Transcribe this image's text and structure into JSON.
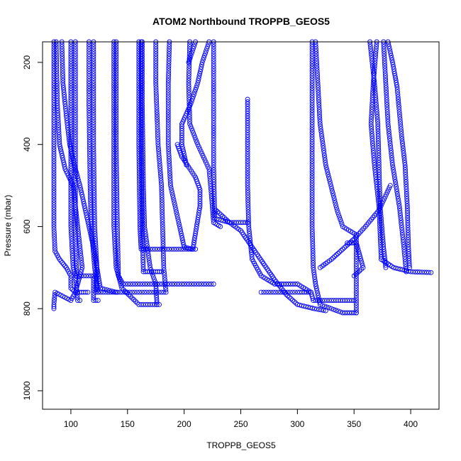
{
  "chart_data": {
    "type": "scatter",
    "title": "ATOM2 Northbound TROPPB_GEOS5",
    "xlabel": "TROPPB_GEOS5",
    "ylabel": "Pressure (mbar)",
    "xlim": [
      75,
      425
    ],
    "ylim": [
      1045,
      150
    ],
    "y_inverted": true,
    "x_ticks": [
      100,
      150,
      200,
      250,
      300,
      350,
      400
    ],
    "y_ticks": [
      200,
      400,
      600,
      800,
      1000
    ],
    "grid": false,
    "marker": "open-circle",
    "series_color": "#0000ff",
    "series": [
      {
        "values": [
          [
            85,
            150
          ],
          [
            85,
            400
          ],
          [
            85,
            600
          ],
          [
            86,
            660
          ],
          [
            90,
            680
          ],
          [
            96,
            700
          ],
          [
            100,
            720
          ],
          [
            100,
            750
          ],
          [
            104,
            760
          ],
          [
            100,
            780
          ],
          [
            86,
            760
          ],
          [
            85,
            790
          ],
          [
            85,
            800
          ]
        ]
      },
      {
        "values": [
          [
            87,
            150
          ],
          [
            88,
            300
          ],
          [
            90,
            400
          ],
          [
            95,
            460
          ],
          [
            102,
            500
          ],
          [
            106,
            600
          ],
          [
            110,
            700
          ],
          [
            104,
            760
          ],
          [
            115,
            760
          ]
        ]
      },
      {
        "values": [
          [
            92,
            150
          ],
          [
            93,
            250
          ],
          [
            96,
            330
          ],
          [
            99,
            400
          ],
          [
            103,
            450
          ],
          [
            108,
            500
          ],
          [
            112,
            550
          ],
          [
            116,
            600
          ],
          [
            120,
            650
          ],
          [
            123,
            700
          ],
          [
            122,
            760
          ],
          [
            182,
            760
          ]
        ]
      },
      {
        "values": [
          [
            100,
            150
          ],
          [
            100,
            400
          ],
          [
            100,
            600
          ],
          [
            102,
            700
          ],
          [
            104,
            720
          ],
          [
            106,
            780
          ],
          [
            108,
            780
          ]
        ]
      },
      {
        "values": [
          [
            104,
            150
          ],
          [
            104,
            400
          ],
          [
            104,
            600
          ],
          [
            105,
            720
          ],
          [
            120,
            720
          ],
          [
            120,
            780
          ],
          [
            124,
            780
          ]
        ]
      },
      {
        "values": [
          [
            116,
            150
          ],
          [
            116,
            300
          ],
          [
            117,
            500
          ],
          [
            118,
            600
          ],
          [
            121,
            700
          ],
          [
            124,
            760
          ]
        ]
      },
      {
        "values": [
          [
            120,
            150
          ],
          [
            120,
            400
          ],
          [
            121,
            600
          ],
          [
            123,
            700
          ],
          [
            126,
            750
          ],
          [
            140,
            760
          ]
        ]
      },
      {
        "values": [
          [
            138,
            150
          ],
          [
            138,
            400
          ],
          [
            138,
            600
          ],
          [
            140,
            700
          ],
          [
            145,
            750
          ],
          [
            160,
            790
          ],
          [
            178,
            790
          ]
        ]
      },
      {
        "values": [
          [
            140,
            150
          ],
          [
            140,
            400
          ],
          [
            141,
            600
          ],
          [
            142,
            720
          ],
          [
            146,
            740
          ],
          [
            226,
            740
          ]
        ]
      },
      {
        "values": [
          [
            160,
            150
          ],
          [
            160,
            400
          ],
          [
            161,
            600
          ],
          [
            162,
            655
          ],
          [
            168,
            655
          ],
          [
            210,
            655
          ]
        ]
      },
      {
        "values": [
          [
            163,
            150
          ],
          [
            163,
            300
          ],
          [
            164,
            500
          ],
          [
            165,
            600
          ],
          [
            170,
            700
          ],
          [
            175,
            740
          ],
          [
            176,
            790
          ]
        ]
      },
      {
        "values": [
          [
            162,
            150
          ],
          [
            162,
            400
          ],
          [
            163,
            600
          ],
          [
            164,
            710
          ],
          [
            171,
            710
          ],
          [
            180,
            710
          ]
        ]
      },
      {
        "values": [
          [
            175,
            150
          ],
          [
            175,
            250
          ],
          [
            177,
            400
          ],
          [
            180,
            500
          ],
          [
            181,
            600
          ],
          [
            182,
            700
          ],
          [
            184,
            760
          ]
        ]
      },
      {
        "values": [
          [
            187,
            150
          ],
          [
            186,
            250
          ],
          [
            186,
            400
          ],
          [
            188,
            500
          ],
          [
            196,
            600
          ],
          [
            200,
            650
          ],
          [
            207,
            655
          ]
        ]
      },
      {
        "values": [
          [
            194,
            400
          ],
          [
            198,
            430
          ],
          [
            204,
            455
          ],
          [
            210,
            480
          ],
          [
            214,
            510
          ],
          [
            214,
            550
          ],
          [
            211,
            600
          ],
          [
            208,
            650
          ]
        ]
      },
      {
        "values": [
          [
            205,
            150
          ],
          [
            204,
            250
          ],
          [
            205,
            350
          ],
          [
            212,
            400
          ],
          [
            222,
            460
          ],
          [
            224,
            520
          ],
          [
            226,
            590
          ],
          [
            232,
            600
          ]
        ]
      },
      {
        "values": [
          [
            222,
            150
          ],
          [
            216,
            200
          ],
          [
            212,
            250
          ],
          [
            206,
            300
          ],
          [
            198,
            350
          ],
          [
            198,
            400
          ],
          [
            202,
            450
          ]
        ]
      },
      {
        "values": [
          [
            226,
            150
          ],
          [
            226,
            300
          ],
          [
            226,
            450
          ],
          [
            227,
            580
          ],
          [
            240,
            590
          ],
          [
            256,
            590
          ]
        ]
      },
      {
        "values": [
          [
            228,
            560
          ],
          [
            240,
            590
          ],
          [
            250,
            610
          ],
          [
            260,
            650
          ],
          [
            270,
            690
          ],
          [
            280,
            730
          ],
          [
            290,
            765
          ],
          [
            300,
            790
          ],
          [
            315,
            800
          ],
          [
            325,
            805
          ]
        ]
      },
      {
        "values": [
          [
            256,
            290
          ],
          [
            256,
            400
          ],
          [
            256,
            500
          ],
          [
            257,
            600
          ],
          [
            260,
            680
          ],
          [
            268,
            720
          ],
          [
            280,
            740
          ],
          [
            300,
            740
          ],
          [
            312,
            760
          ],
          [
            314,
            780
          ],
          [
            330,
            780
          ],
          [
            350,
            780
          ]
        ]
      },
      {
        "values": [
          [
            268,
            760
          ],
          [
            300,
            760
          ],
          [
            312,
            760
          ]
        ]
      },
      {
        "values": [
          [
            313,
            150
          ],
          [
            313,
            400
          ],
          [
            313,
            600
          ],
          [
            314,
            700
          ],
          [
            316,
            740
          ],
          [
            320,
            790
          ],
          [
            340,
            810
          ],
          [
            352,
            810
          ]
        ]
      },
      {
        "values": [
          [
            316,
            150
          ],
          [
            318,
            250
          ],
          [
            320,
            350
          ],
          [
            325,
            450
          ],
          [
            335,
            560
          ],
          [
            340,
            600
          ],
          [
            352,
            620
          ],
          [
            352,
            810
          ]
        ]
      },
      {
        "values": [
          [
            344,
            640
          ],
          [
            352,
            640
          ],
          [
            358,
            700
          ],
          [
            350,
            720
          ]
        ]
      },
      {
        "values": [
          [
            320,
            700
          ],
          [
            330,
            680
          ],
          [
            340,
            655
          ],
          [
            350,
            630
          ],
          [
            360,
            600
          ],
          [
            372,
            560
          ],
          [
            382,
            500
          ]
        ]
      },
      {
        "values": [
          [
            370,
            150
          ],
          [
            367,
            250
          ],
          [
            365,
            350
          ],
          [
            368,
            450
          ],
          [
            372,
            550
          ],
          [
            374,
            680
          ],
          [
            385,
            700
          ],
          [
            400,
            710
          ],
          [
            418,
            712
          ]
        ]
      },
      {
        "values": [
          [
            376,
            150
          ],
          [
            378,
            250
          ],
          [
            380,
            350
          ],
          [
            384,
            450
          ],
          [
            390,
            550
          ],
          [
            394,
            650
          ],
          [
            396,
            710
          ]
        ]
      },
      {
        "values": [
          [
            380,
            150
          ],
          [
            384,
            200
          ],
          [
            388,
            260
          ],
          [
            390,
            320
          ],
          [
            392,
            380
          ],
          [
            395,
            450
          ],
          [
            397,
            550
          ],
          [
            398,
            650
          ],
          [
            399,
            700
          ]
        ]
      },
      {
        "values": [
          [
            364,
            150
          ],
          [
            368,
            250
          ],
          [
            371,
            350
          ],
          [
            372,
            450
          ],
          [
            373,
            550
          ],
          [
            376,
            650
          ],
          [
            378,
            700
          ]
        ]
      },
      {
        "values": [
          [
            204,
            200
          ],
          [
            210,
            150
          ]
        ]
      }
    ]
  }
}
